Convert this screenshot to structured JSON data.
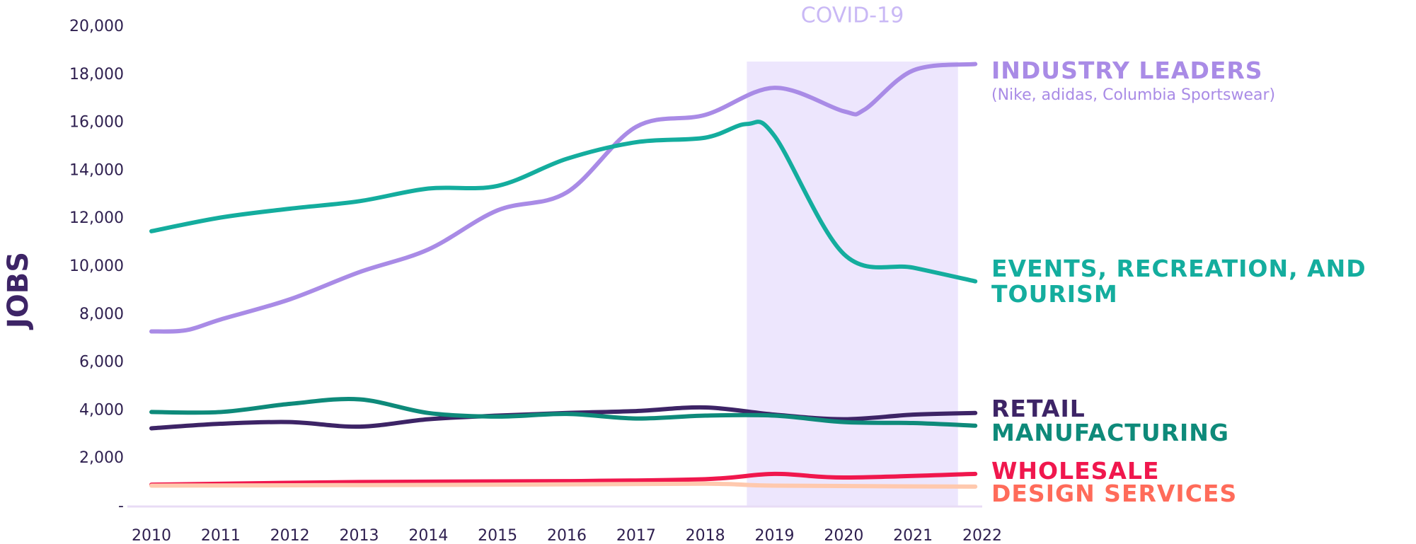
{
  "chart_data": {
    "type": "line",
    "ylabel": "JOBS",
    "xlim": [
      2010,
      2022
    ],
    "xticks": [
      2010,
      2011,
      2012,
      2013,
      2014,
      2015,
      2016,
      2017,
      2018,
      2019,
      2020,
      2021,
      2022
    ],
    "ylim": [
      0,
      20000
    ],
    "yticks": [
      {
        "value": 0,
        "label": "-"
      },
      {
        "value": 2000,
        "label": "2,000"
      },
      {
        "value": 4000,
        "label": "4,000"
      },
      {
        "value": 6000,
        "label": "6,000"
      },
      {
        "value": 8000,
        "label": "8,000"
      },
      {
        "value": 10000,
        "label": "10,000"
      },
      {
        "value": 12000,
        "label": "12,000"
      },
      {
        "value": 14000,
        "label": "14,000"
      },
      {
        "value": 16000,
        "label": "16,000"
      },
      {
        "value": 18000,
        "label": "18,000"
      },
      {
        "value": 20000,
        "label": "20,000"
      }
    ],
    "shade": {
      "label": "COVID-19",
      "x": [
        2018.6,
        2021.65
      ],
      "color": "#ede6fd"
    },
    "series": [
      {
        "name": "INDUSTRY LEADERS",
        "note": "(Nike, adidas, Columbia Sportswear)",
        "color": "#a98be6",
        "label_color": "#a98be6",
        "x": [
          2010,
          2010.5,
          2011,
          2012,
          2013,
          2014,
          2015,
          2016,
          2017,
          2018,
          2019,
          2020,
          2020.3,
          2021,
          2021.9
        ],
        "values": [
          7300,
          7350,
          7800,
          8640,
          9770,
          10720,
          12350,
          13100,
          15830,
          16330,
          17460,
          16480,
          16550,
          18180,
          18450
        ]
      },
      {
        "name": "EVENTS, RECREATION, AND TOURISM",
        "color": "#14ad9e",
        "label_color": "#14ad9e",
        "x": [
          2010,
          2011,
          2012,
          2013,
          2014,
          2015,
          2016,
          2017,
          2018,
          2018.6,
          2019,
          2020,
          2021,
          2021.9
        ],
        "values": [
          11480,
          12050,
          12420,
          12730,
          13260,
          13370,
          14500,
          15190,
          15380,
          15950,
          15450,
          10530,
          9960,
          9390
        ]
      },
      {
        "name": "RETAIL",
        "color": "#3d2466",
        "label_color": "#3d2466",
        "x": [
          2010,
          2011,
          2012,
          2013,
          2014,
          2015,
          2016,
          2017,
          2018,
          2019,
          2020,
          2021,
          2021.9
        ],
        "values": [
          3260,
          3450,
          3520,
          3330,
          3640,
          3790,
          3900,
          3980,
          4130,
          3830,
          3640,
          3830,
          3900
        ]
      },
      {
        "name": "MANUFACTURING",
        "color": "#0e8a7a",
        "label_color": "#0e8a7a",
        "x": [
          2010,
          2011,
          2012,
          2013,
          2014,
          2015,
          2016,
          2017,
          2018,
          2019,
          2020,
          2021,
          2021.9
        ],
        "values": [
          3940,
          3940,
          4280,
          4470,
          3900,
          3750,
          3860,
          3670,
          3790,
          3790,
          3520,
          3480,
          3370
        ]
      },
      {
        "name": "WHOLESALE",
        "color": "#f0174d",
        "label_color": "#f0174d",
        "x": [
          2010,
          2013,
          2016,
          2018,
          2019,
          2020,
          2021.9
        ],
        "values": [
          910,
          1020,
          1060,
          1140,
          1360,
          1210,
          1360
        ]
      },
      {
        "name": "DESIGN SERVICES",
        "color": "#ffc9ae",
        "label_color": "#ff6b5a",
        "x": [
          2010,
          2015,
          2018,
          2019,
          2021.9
        ],
        "values": [
          870,
          910,
          950,
          870,
          830
        ]
      }
    ]
  }
}
